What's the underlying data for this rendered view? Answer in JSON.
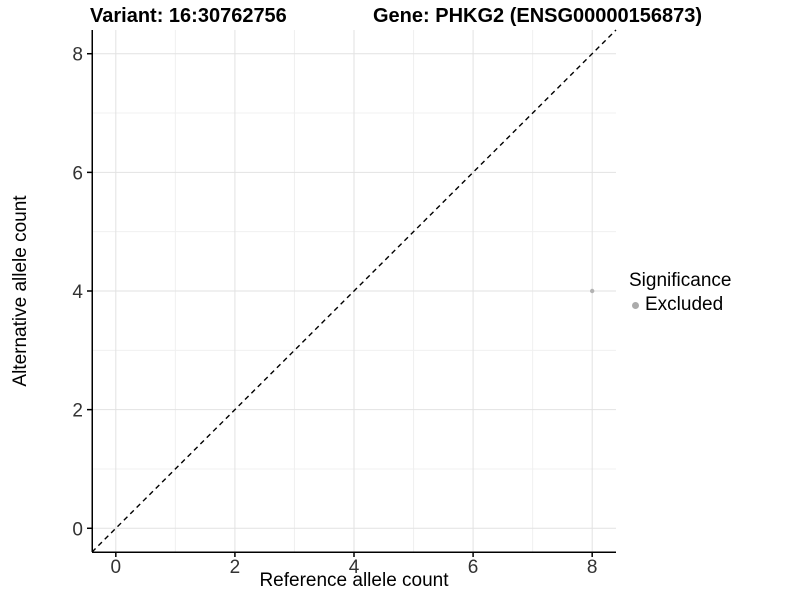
{
  "chart_data": {
    "type": "scatter",
    "titles": {
      "left": "Variant: 16:30762756",
      "right": "Gene: PHKG2 (ENSG00000156873)"
    },
    "xlabel": "Reference allele count",
    "ylabel": "Alternative allele count",
    "xlim": [
      -0.4,
      8.4
    ],
    "ylim": [
      -0.4,
      8.4
    ],
    "x_ticks": [
      0,
      2,
      4,
      6,
      8
    ],
    "y_ticks": [
      0,
      2,
      4,
      6,
      8
    ],
    "x_minor": [
      1,
      3,
      5,
      7
    ],
    "y_minor": [
      1,
      3,
      5,
      7
    ],
    "grid": true,
    "legend_position": "right",
    "points": [
      {
        "x": 8,
        "y": 4,
        "series": "Excluded",
        "color": "#B3B3B3",
        "radius": 2.2
      }
    ],
    "reference_line": {
      "type": "identity",
      "slope": 1,
      "intercept": 0,
      "style": "dashed",
      "color": "#000000"
    },
    "legend": {
      "title": "Significance",
      "items": [
        {
          "label": "Excluded",
          "color": "#ABABAB"
        }
      ]
    }
  },
  "colors": {
    "background": "#FFFFFF",
    "major_grid": "#E2E2E2",
    "minor_grid": "#F0F0F0",
    "axis": "#000000",
    "tick_label": "#333333"
  }
}
